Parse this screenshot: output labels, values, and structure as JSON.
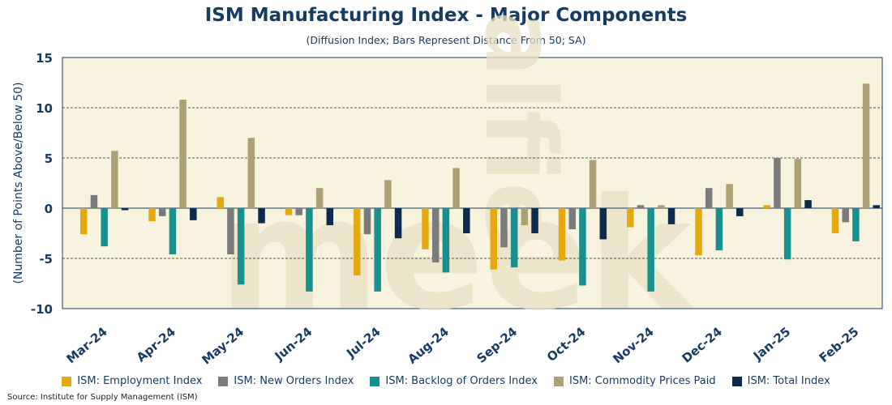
{
  "chart_data": {
    "type": "bar",
    "title": "ISM Manufacturing Index - Major Components",
    "subtitle": "(Diffusion Index; Bars Represent Distance From 50; SA)",
    "ylabel": "(Number of Points Above/Below 50)",
    "xlabel": "",
    "ylim": [
      -10,
      15
    ],
    "yticks": [
      -10,
      -5,
      0,
      5,
      10,
      15
    ],
    "ytick_labels": [
      "-10",
      "-5",
      "0",
      "5",
      "10",
      "15"
    ],
    "grid": "dashed horizontal at 5, 10, -5",
    "legend_position": "bottom",
    "categories": [
      "Mar-24",
      "Apr-24",
      "May-24",
      "Jun-24",
      "Jul-24",
      "Aug-24",
      "Sep-24",
      "Oct-24",
      "Nov-24",
      "Dec-24",
      "Jan-25",
      "Feb-25"
    ],
    "series": [
      {
        "name": "ISM: Employment Index",
        "color": "#e3a90e",
        "values": [
          -2.6,
          -1.3,
          1.1,
          -0.7,
          -6.7,
          -4.1,
          -6.1,
          -5.2,
          -1.9,
          -4.7,
          0.3,
          -2.5
        ]
      },
      {
        "name": "ISM: New Orders Index",
        "color": "#7b7b7b",
        "values": [
          1.3,
          -0.8,
          -4.6,
          -0.7,
          -2.6,
          -5.4,
          -3.9,
          -2.1,
          0.3,
          2.0,
          5.0,
          -1.4
        ]
      },
      {
        "name": "ISM: Backlog of Orders Index",
        "color": "#18908f",
        "values": [
          -3.8,
          -4.6,
          -7.6,
          -8.3,
          -8.3,
          -6.4,
          -5.9,
          -7.7,
          -8.3,
          -4.2,
          -5.1,
          -3.3
        ]
      },
      {
        "name": "ISM: Commodity Prices Paid",
        "color": "#ada072",
        "values": [
          5.7,
          10.8,
          7.0,
          2.0,
          2.8,
          4.0,
          -1.7,
          4.8,
          0.3,
          2.4,
          4.9,
          12.4
        ]
      },
      {
        "name": "ISM: Total Index",
        "color": "#0d2b4f",
        "values": [
          -0.2,
          -1.2,
          -1.5,
          -1.7,
          -3.0,
          -2.5,
          -2.5,
          -3.1,
          -1.6,
          -0.8,
          0.8,
          0.3
        ]
      }
    ],
    "watermark": "alfie meek"
  },
  "source": "Source: Institute for Supply Management (ISM)"
}
